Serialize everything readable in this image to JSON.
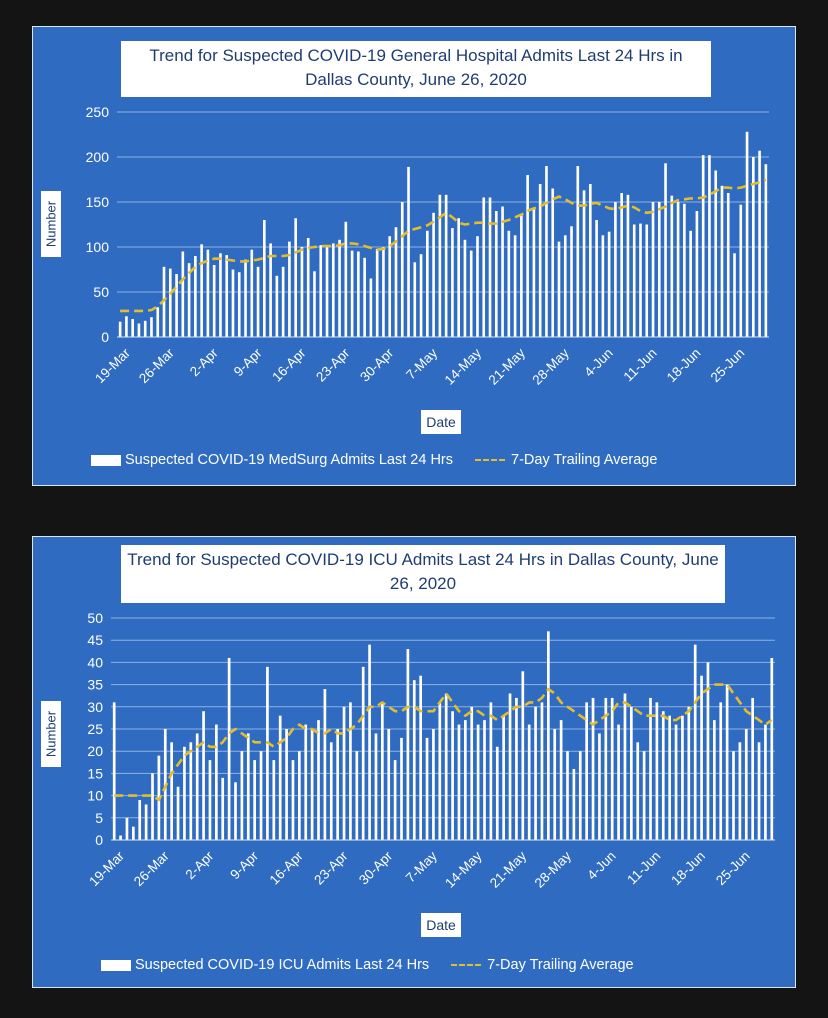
{
  "colors": {
    "background": "#141414",
    "panel": "#2f6bc0",
    "bar": "#ffffff",
    "average_line": "#e2bd2e",
    "grid": "#8fb2e4",
    "title_text": "#1f3d73"
  },
  "chart_data": [
    {
      "type": "bar",
      "title": "Trend for Suspected COVID-19 General Hospital Admits Last 24 Hrs in Dallas County, June 26, 2020",
      "xlabel": "Date",
      "ylabel": "Number",
      "ylim": [
        0,
        250
      ],
      "yticks": [
        0,
        50,
        100,
        150,
        200,
        250
      ],
      "grid": true,
      "x_start": "19-Mar",
      "x_end": "25-Jun",
      "xtick_labels": [
        "19-Mar",
        "26-Mar",
        "2-Apr",
        "9-Apr",
        "16-Apr",
        "23-Apr",
        "30-Apr",
        "7-May",
        "14-May",
        "21-May",
        "28-May",
        "4-Jun",
        "11-Jun",
        "18-Jun",
        "25-Jun"
      ],
      "legend": "bottom",
      "series": [
        {
          "name": "Suspected COVID-19 MedSurg Admits Last 24 Hrs",
          "type": "bar",
          "values": [
            17,
            23,
            20,
            15,
            18,
            22,
            33,
            78,
            76,
            70,
            95,
            82,
            90,
            103,
            97,
            80,
            93,
            91,
            75,
            72,
            86,
            97,
            78,
            130,
            104,
            68,
            78,
            106,
            132,
            100,
            110,
            73,
            102,
            100,
            104,
            108,
            128,
            96,
            95,
            88,
            65,
            98,
            100,
            112,
            122,
            150,
            189,
            83,
            92,
            118,
            138,
            158,
            158,
            121,
            132,
            108,
            96,
            112,
            155,
            155,
            140,
            145,
            118,
            113,
            137,
            180,
            142,
            170,
            190,
            165,
            106,
            113,
            123,
            190,
            163,
            170,
            130,
            113,
            117,
            150,
            160,
            158,
            125,
            126,
            125,
            150,
            150,
            193,
            157,
            150,
            148,
            118,
            140,
            202,
            202,
            185,
            168,
            160,
            93,
            147,
            228,
            200,
            207,
            192
          ]
        },
        {
          "name": "7-Day Trailing Average",
          "type": "line",
          "values": [
            29,
            29,
            29,
            29,
            29,
            30,
            34,
            41,
            48,
            56,
            64,
            71,
            78,
            82,
            85,
            87,
            87,
            86,
            85,
            84,
            84,
            85,
            86,
            88,
            90,
            90,
            90,
            91,
            94,
            97,
            99,
            100,
            101,
            101,
            101,
            102,
            104,
            104,
            103,
            101,
            99,
            97,
            98,
            101,
            106,
            112,
            118,
            120,
            122,
            124,
            128,
            133,
            138,
            133,
            127,
            125,
            126,
            127,
            127,
            126,
            126,
            128,
            130,
            133,
            136,
            140,
            143,
            145,
            149,
            153,
            156,
            153,
            149,
            146,
            146,
            148,
            149,
            146,
            143,
            142,
            144,
            146,
            144,
            140,
            138,
            139,
            142,
            145,
            149,
            152,
            153,
            154,
            154,
            155,
            158,
            162,
            166,
            166,
            165,
            166,
            168,
            170,
            172,
            175
          ]
        }
      ]
    },
    {
      "type": "bar",
      "title": "Trend for Suspected COVID-19 ICU Admits Last 24 Hrs in Dallas County, June 26, 2020",
      "xlabel": "Date",
      "ylabel": "Number",
      "ylim": [
        0,
        50
      ],
      "yticks": [
        0,
        5,
        10,
        15,
        20,
        25,
        30,
        35,
        40,
        45,
        50
      ],
      "grid": true,
      "x_start": "19-Mar",
      "x_end": "25-Jun",
      "xtick_labels": [
        "19-Mar",
        "26-Mar",
        "2-Apr",
        "9-Apr",
        "16-Apr",
        "23-Apr",
        "30-Apr",
        "7-May",
        "14-May",
        "21-May",
        "28-May",
        "4-Jun",
        "11-Jun",
        "18-Jun",
        "25-Jun"
      ],
      "legend": "bottom",
      "series": [
        {
          "name": "Suspected COVID-19 ICU Admits Last 24 Hrs",
          "type": "bar",
          "values": [
            31,
            1,
            5,
            3,
            9,
            8,
            15,
            19,
            25,
            22,
            12,
            21,
            22,
            24,
            29,
            18,
            26,
            14,
            41,
            13,
            20,
            24,
            18,
            20,
            39,
            18,
            28,
            25,
            18,
            20,
            26,
            25,
            27,
            34,
            22,
            25,
            30,
            31,
            20,
            39,
            44,
            24,
            31,
            25,
            18,
            23,
            43,
            36,
            37,
            23,
            25,
            31,
            33,
            29,
            26,
            27,
            30,
            26,
            27,
            31,
            21,
            28,
            33,
            32,
            38,
            26,
            30,
            31,
            47,
            25,
            27,
            20,
            16,
            20,
            31,
            32,
            24,
            32,
            32,
            26,
            33,
            30,
            22,
            20,
            32,
            31,
            29,
            28,
            26,
            28,
            30,
            44,
            37,
            40,
            27,
            31,
            35,
            20,
            22,
            25,
            32,
            22,
            26,
            41
          ]
        },
        {
          "name": "7-Day Trailing Average",
          "type": "line",
          "values": [
            10,
            10,
            10,
            10,
            10,
            10,
            10,
            9,
            12,
            15,
            17,
            19,
            20,
            21,
            22,
            21,
            21,
            22,
            24,
            25,
            24,
            23,
            22,
            22,
            22,
            21,
            22,
            23,
            25,
            26,
            25,
            25,
            24,
            24,
            25,
            24,
            24,
            25,
            26,
            28,
            30,
            30,
            31,
            30,
            29,
            29,
            30,
            30,
            29,
            29,
            29,
            31,
            33,
            31,
            29,
            28,
            29,
            29,
            28,
            28,
            27,
            28,
            29,
            30,
            30,
            31,
            31,
            32,
            34,
            33,
            31,
            30,
            29,
            28,
            27,
            26,
            27,
            28,
            29,
            31,
            31,
            30,
            29,
            28,
            28,
            28,
            28,
            27,
            27,
            28,
            29,
            31,
            33,
            34,
            35,
            35,
            35,
            33,
            31,
            29,
            28,
            27,
            26,
            27
          ]
        }
      ]
    }
  ]
}
